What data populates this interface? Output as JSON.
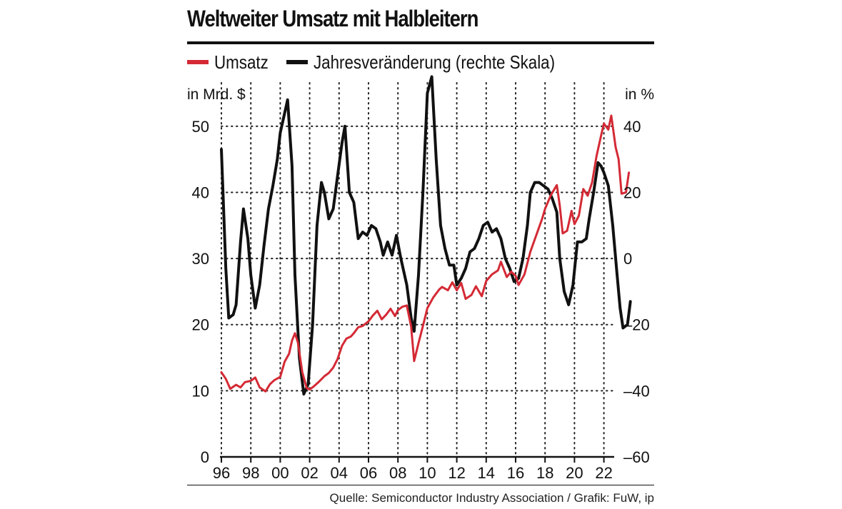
{
  "chart_data": {
    "type": "line",
    "title": "Weltweiter Umsatz mit Halbleitern",
    "ylabel_left": "in Mrd. $",
    "ylabel_right": "in %",
    "x_range": [
      1996,
      2024
    ],
    "x_tick_labels": [
      "96",
      "98",
      "00",
      "02",
      "04",
      "06",
      "08",
      "10",
      "12",
      "14",
      "16",
      "18",
      "20",
      "22"
    ],
    "y_left_range": [
      0,
      57
    ],
    "y_left_ticks": [
      0,
      10,
      20,
      30,
      40,
      50
    ],
    "y_right_range": [
      -60,
      54
    ],
    "y_right_ticks": [
      -60,
      -40,
      -20,
      0,
      20,
      40
    ],
    "y_right_tick_labels": [
      "–60",
      "–40",
      "–20",
      "0",
      "20",
      "40"
    ],
    "grid": "dotted",
    "series": [
      {
        "name": "Umsatz",
        "axis": "left",
        "color": "#d42a35",
        "points": [
          [
            1996.0,
            12.8
          ],
          [
            1996.3,
            11.8
          ],
          [
            1996.6,
            10.3
          ],
          [
            1997.0,
            10.9
          ],
          [
            1997.3,
            10.5
          ],
          [
            1997.6,
            11.3
          ],
          [
            1998.0,
            11.5
          ],
          [
            1998.3,
            12.0
          ],
          [
            1998.6,
            10.5
          ],
          [
            1999.0,
            9.9
          ],
          [
            1999.3,
            11.0
          ],
          [
            1999.6,
            11.6
          ],
          [
            2000.0,
            12.1
          ],
          [
            2000.3,
            14.4
          ],
          [
            2000.6,
            15.6
          ],
          [
            2000.8,
            17.6
          ],
          [
            2001.0,
            18.7
          ],
          [
            2001.2,
            17.3
          ],
          [
            2001.5,
            12.8
          ],
          [
            2001.8,
            10.4
          ],
          [
            2002.0,
            10.2
          ],
          [
            2002.3,
            10.7
          ],
          [
            2002.6,
            11.3
          ],
          [
            2003.0,
            12.2
          ],
          [
            2003.3,
            12.7
          ],
          [
            2003.6,
            13.5
          ],
          [
            2003.9,
            14.8
          ],
          [
            2004.2,
            16.8
          ],
          [
            2004.5,
            17.9
          ],
          [
            2004.8,
            18.2
          ],
          [
            2005.0,
            18.7
          ],
          [
            2005.3,
            19.6
          ],
          [
            2005.6,
            19.8
          ],
          [
            2006.0,
            20.5
          ],
          [
            2006.3,
            21.4
          ],
          [
            2006.6,
            22.1
          ],
          [
            2006.9,
            20.8
          ],
          [
            2007.2,
            21.5
          ],
          [
            2007.5,
            22.4
          ],
          [
            2007.8,
            21.3
          ],
          [
            2008.0,
            22.2
          ],
          [
            2008.3,
            22.7
          ],
          [
            2008.6,
            22.9
          ],
          [
            2008.9,
            19.7
          ],
          [
            2009.1,
            14.5
          ],
          [
            2009.4,
            17.2
          ],
          [
            2009.7,
            19.8
          ],
          [
            2010.0,
            22.5
          ],
          [
            2010.4,
            24.1
          ],
          [
            2010.8,
            25.3
          ],
          [
            2011.0,
            25.7
          ],
          [
            2011.4,
            25.2
          ],
          [
            2011.7,
            26.4
          ],
          [
            2012.0,
            25.2
          ],
          [
            2012.3,
            26.3
          ],
          [
            2012.6,
            23.9
          ],
          [
            2013.0,
            24.5
          ],
          [
            2013.3,
            25.8
          ],
          [
            2013.7,
            24.3
          ],
          [
            2014.0,
            26.6
          ],
          [
            2014.4,
            27.6
          ],
          [
            2014.8,
            28.2
          ],
          [
            2015.0,
            29.5
          ],
          [
            2015.4,
            27.2
          ],
          [
            2015.7,
            28.0
          ],
          [
            2016.0,
            27.4
          ],
          [
            2016.2,
            26.0
          ],
          [
            2016.6,
            27.6
          ],
          [
            2017.0,
            31.0
          ],
          [
            2017.4,
            33.5
          ],
          [
            2017.8,
            36.0
          ],
          [
            2018.0,
            37.5
          ],
          [
            2018.4,
            39.6
          ],
          [
            2018.8,
            41.1
          ],
          [
            2019.0,
            38.0
          ],
          [
            2019.2,
            33.8
          ],
          [
            2019.5,
            34.2
          ],
          [
            2019.8,
            37.2
          ],
          [
            2020.0,
            35.2
          ],
          [
            2020.3,
            36.5
          ],
          [
            2020.6,
            40.5
          ],
          [
            2020.9,
            39.5
          ],
          [
            2021.2,
            41.5
          ],
          [
            2021.5,
            45.5
          ],
          [
            2021.8,
            48.5
          ],
          [
            2022.0,
            50.4
          ],
          [
            2022.3,
            49.5
          ],
          [
            2022.5,
            51.6
          ],
          [
            2022.8,
            46.8
          ],
          [
            2023.0,
            45.0
          ],
          [
            2023.2,
            39.8
          ],
          [
            2023.5,
            40.0
          ],
          [
            2023.7,
            43.0
          ]
        ]
      },
      {
        "name": "Jahresveränderung (rechte Skala)",
        "axis": "right",
        "color": "#111111",
        "points": [
          [
            1996.0,
            33
          ],
          [
            1996.3,
            -3
          ],
          [
            1996.5,
            -18
          ],
          [
            1996.8,
            -17
          ],
          [
            1997.0,
            -14
          ],
          [
            1997.3,
            5
          ],
          [
            1997.5,
            15
          ],
          [
            1997.8,
            6
          ],
          [
            1998.0,
            -5
          ],
          [
            1998.3,
            -15
          ],
          [
            1998.6,
            -8
          ],
          [
            1998.9,
            4
          ],
          [
            1999.2,
            15
          ],
          [
            1999.5,
            22
          ],
          [
            1999.8,
            30
          ],
          [
            2000.0,
            38
          ],
          [
            2000.3,
            44
          ],
          [
            2000.5,
            48
          ],
          [
            2000.8,
            28
          ],
          [
            2001.0,
            -5
          ],
          [
            2001.3,
            -30
          ],
          [
            2001.6,
            -41
          ],
          [
            2001.9,
            -38
          ],
          [
            2002.2,
            -20
          ],
          [
            2002.5,
            10
          ],
          [
            2002.8,
            23
          ],
          [
            2003.0,
            20
          ],
          [
            2003.3,
            12
          ],
          [
            2003.6,
            15
          ],
          [
            2003.9,
            25
          ],
          [
            2004.2,
            35
          ],
          [
            2004.4,
            40
          ],
          [
            2004.7,
            20
          ],
          [
            2005.0,
            17
          ],
          [
            2005.3,
            6
          ],
          [
            2005.6,
            8
          ],
          [
            2005.9,
            7
          ],
          [
            2006.2,
            10
          ],
          [
            2006.5,
            9
          ],
          [
            2006.8,
            5
          ],
          [
            2007.0,
            1
          ],
          [
            2007.3,
            5
          ],
          [
            2007.6,
            1
          ],
          [
            2007.9,
            7
          ],
          [
            2008.2,
            0
          ],
          [
            2008.6,
            -8
          ],
          [
            2008.9,
            -18
          ],
          [
            2009.1,
            -22
          ],
          [
            2009.4,
            -5
          ],
          [
            2009.7,
            20
          ],
          [
            2010.0,
            50
          ],
          [
            2010.3,
            55
          ],
          [
            2010.6,
            30
          ],
          [
            2010.9,
            10
          ],
          [
            2011.2,
            3
          ],
          [
            2011.5,
            -2
          ],
          [
            2011.8,
            -2
          ],
          [
            2012.0,
            -8
          ],
          [
            2012.3,
            -6
          ],
          [
            2012.6,
            -3
          ],
          [
            2012.9,
            2
          ],
          [
            2013.2,
            3
          ],
          [
            2013.5,
            6
          ],
          [
            2013.8,
            10
          ],
          [
            2014.1,
            11
          ],
          [
            2014.4,
            8
          ],
          [
            2014.7,
            9
          ],
          [
            2015.0,
            6
          ],
          [
            2015.3,
            0
          ],
          [
            2015.6,
            -3
          ],
          [
            2015.9,
            -7
          ],
          [
            2016.2,
            -6
          ],
          [
            2016.5,
            0
          ],
          [
            2016.8,
            10
          ],
          [
            2017.0,
            20
          ],
          [
            2017.3,
            23
          ],
          [
            2017.6,
            23
          ],
          [
            2017.9,
            22
          ],
          [
            2018.2,
            21
          ],
          [
            2018.5,
            18
          ],
          [
            2018.8,
            14
          ],
          [
            2019.0,
            0
          ],
          [
            2019.3,
            -10
          ],
          [
            2019.6,
            -14
          ],
          [
            2019.9,
            -8
          ],
          [
            2020.2,
            5
          ],
          [
            2020.5,
            5
          ],
          [
            2020.8,
            6
          ],
          [
            2021.0,
            12
          ],
          [
            2021.3,
            20
          ],
          [
            2021.6,
            29
          ],
          [
            2021.8,
            28
          ],
          [
            2022.0,
            26
          ],
          [
            2022.3,
            22
          ],
          [
            2022.6,
            10
          ],
          [
            2022.9,
            -5
          ],
          [
            2023.1,
            -15
          ],
          [
            2023.3,
            -21
          ],
          [
            2023.6,
            -20
          ],
          [
            2023.8,
            -13
          ]
        ]
      }
    ]
  },
  "source": "Quelle: Semiconductor Industry Association / Grafik: FuW, ip"
}
